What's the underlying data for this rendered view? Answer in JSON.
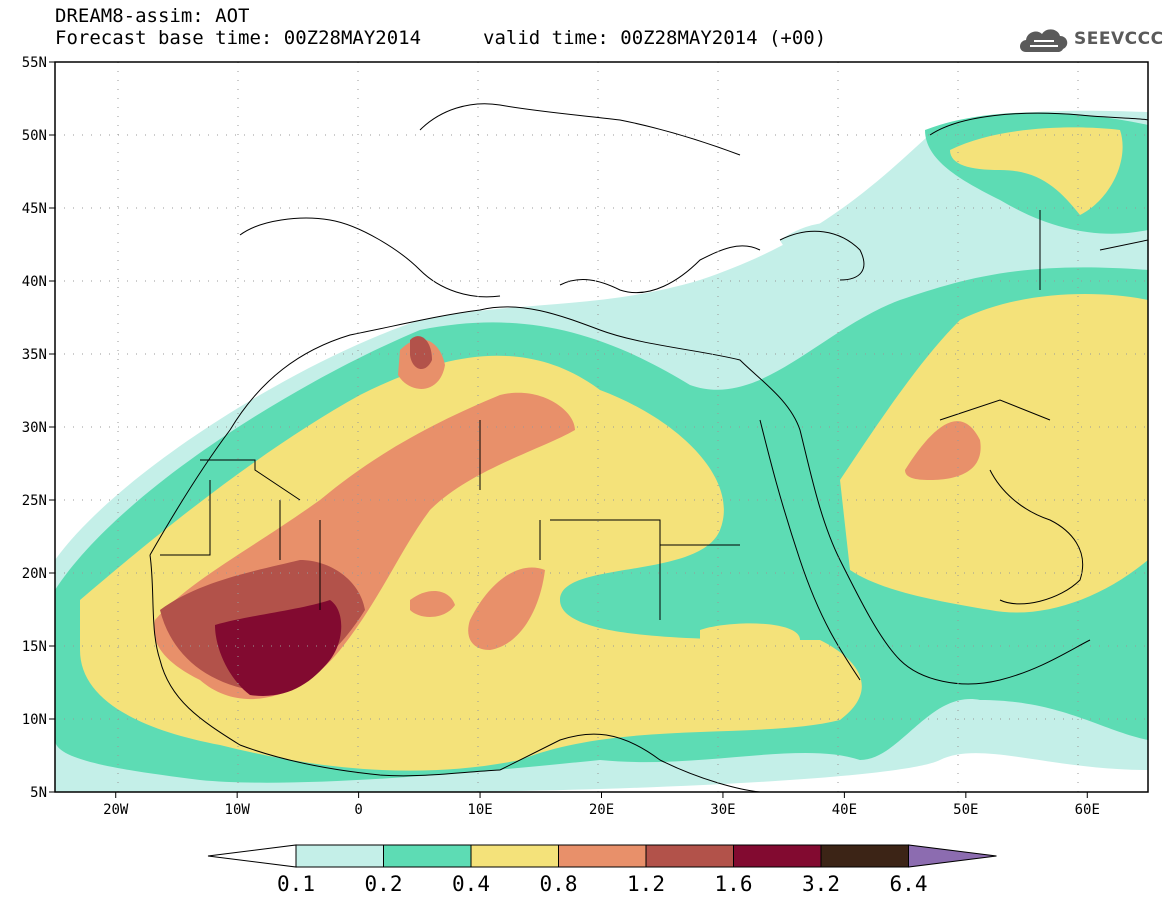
{
  "header": {
    "title": "DREAM8-assim: AOT",
    "base_time": "Forecast base time: 00Z28MAY2014",
    "valid_time": "valid time: 00Z28MAY2014 (+00)"
  },
  "logo": {
    "text": "SEEVCCC"
  },
  "map": {
    "lat_labels": [
      "55N",
      "50N",
      "45N",
      "40N",
      "35N",
      "30N",
      "25N",
      "20N",
      "15N",
      "10N",
      "5N"
    ],
    "lon_labels": [
      "20W",
      "10W",
      "0",
      "10E",
      "20E",
      "30E",
      "40E",
      "50E",
      "60E"
    ],
    "lat_range": [
      5,
      55
    ],
    "lon_range": [
      -25,
      65
    ]
  },
  "colorbar": {
    "labels": [
      "0.1",
      "0.2",
      "0.4",
      "0.8",
      "1.2",
      "1.6",
      "3.2",
      "6.4"
    ],
    "colors": [
      "#c4efe8",
      "#5ddcb4",
      "#f4e27a",
      "#e8906a",
      "#b2524a",
      "#820a30",
      "#3c2416",
      "#8c6cb0"
    ]
  }
}
